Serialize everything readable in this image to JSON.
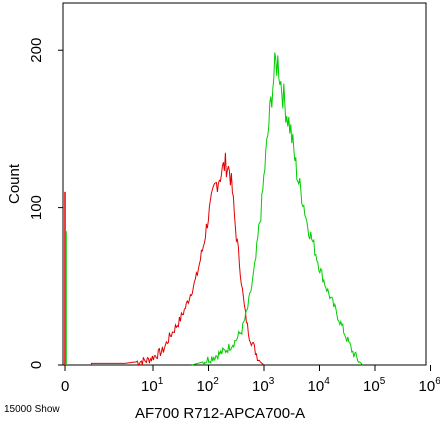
{
  "footer_note": "15000 Show",
  "chart_data": {
    "type": "histogram",
    "title": "",
    "xlabel": "AF700 R712-APCA700-A",
    "ylabel": "Count",
    "x_scale": "biexponential",
    "y_range": [
      0,
      230
    ],
    "y_ticks": [
      0,
      100,
      200
    ],
    "x_ticks": [
      {
        "base": "0",
        "exp": ""
      },
      {
        "base": "10",
        "exp": "1"
      },
      {
        "base": "10",
        "exp": "2"
      },
      {
        "base": "10",
        "exp": "3"
      },
      {
        "base": "10",
        "exp": "4"
      },
      {
        "base": "10",
        "exp": "5"
      },
      {
        "base": "10",
        "exp": "6"
      }
    ],
    "series": [
      {
        "color": "#e00000",
        "zero_spike": 110,
        "points": [
          [
            3,
            1
          ],
          [
            5,
            2
          ],
          [
            8,
            3
          ],
          [
            10,
            5
          ],
          [
            15,
            9
          ],
          [
            20,
            18
          ],
          [
            30,
            28
          ],
          [
            40,
            38
          ],
          [
            60,
            55
          ],
          [
            80,
            75
          ],
          [
            100,
            95
          ],
          [
            130,
            113
          ],
          [
            160,
            120
          ],
          [
            200,
            128
          ],
          [
            240,
            124
          ],
          [
            270,
            110
          ],
          [
            300,
            90
          ],
          [
            350,
            70
          ],
          [
            400,
            50
          ],
          [
            450,
            35
          ],
          [
            500,
            25
          ],
          [
            550,
            18
          ],
          [
            650,
            12
          ],
          [
            750,
            6
          ],
          [
            850,
            2
          ],
          [
            1000,
            0
          ]
        ]
      },
      {
        "color": "#00cc00",
        "zero_spike": 85,
        "points": [
          [
            50,
            0
          ],
          [
            80,
            2
          ],
          [
            120,
            5
          ],
          [
            200,
            9
          ],
          [
            300,
            15
          ],
          [
            400,
            22
          ],
          [
            500,
            35
          ],
          [
            600,
            50
          ],
          [
            700,
            65
          ],
          [
            800,
            85
          ],
          [
            900,
            100
          ],
          [
            1000,
            120
          ],
          [
            1200,
            150
          ],
          [
            1400,
            175
          ],
          [
            1600,
            190
          ],
          [
            1800,
            193
          ],
          [
            2000,
            180
          ],
          [
            2400,
            165
          ],
          [
            3000,
            150
          ],
          [
            4000,
            120
          ],
          [
            5000,
            105
          ],
          [
            6000,
            90
          ],
          [
            8000,
            75
          ],
          [
            10000,
            62
          ],
          [
            13000,
            50
          ],
          [
            17000,
            40
          ],
          [
            22000,
            30
          ],
          [
            30000,
            18
          ],
          [
            40000,
            8
          ],
          [
            50000,
            3
          ],
          [
            60000,
            0
          ]
        ]
      }
    ]
  }
}
